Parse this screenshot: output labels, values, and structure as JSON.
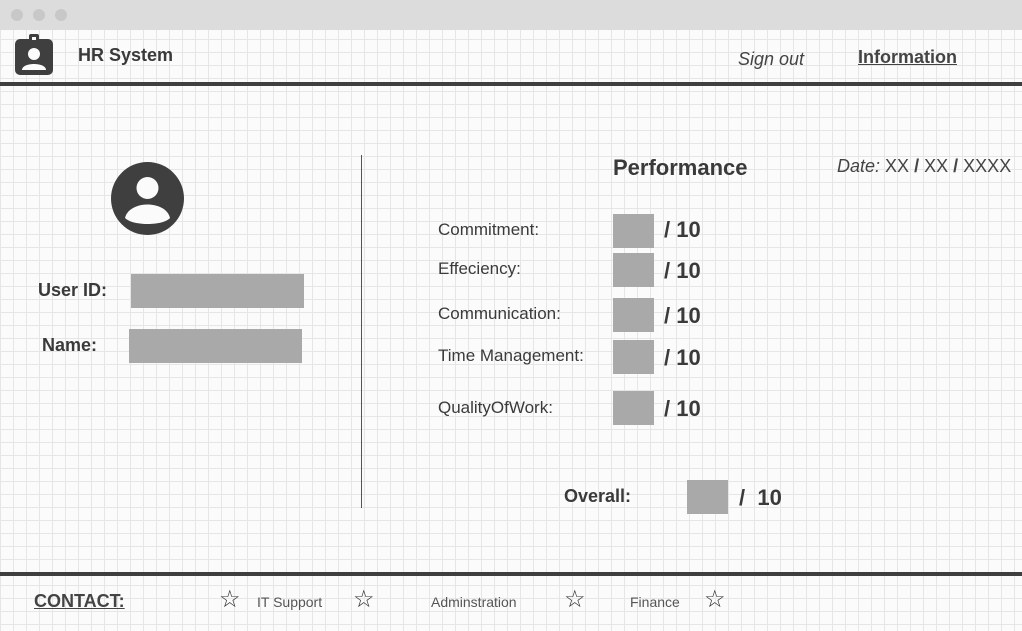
{
  "header": {
    "app_title": "HR System",
    "sign_out_label": "Sign out",
    "information_label": "Information"
  },
  "user": {
    "user_id_label": "User ID:",
    "user_id_value": "",
    "name_label": "Name:",
    "name_value": ""
  },
  "performance": {
    "title": "Performance",
    "date_label": "Date:",
    "date_day": "XX",
    "date_month": "XX",
    "date_year": "XXXX",
    "date_separator": "/",
    "criteria": [
      {
        "label": "Commitment:",
        "score": "",
        "max": "/ 10"
      },
      {
        "label": "Effeciency:",
        "score": "",
        "max": "/ 10"
      },
      {
        "label": "Communication:",
        "score": "",
        "max": "/ 10"
      },
      {
        "label": "Time Management:",
        "score": "",
        "max": "/ 10"
      },
      {
        "label": "QualityOfWork:",
        "score": "",
        "max": "/ 10"
      }
    ],
    "overall": {
      "label": "Overall:",
      "score": "",
      "max": "/  10"
    }
  },
  "footer": {
    "contact_label": "CONTACT:",
    "links": [
      "IT Support",
      "Adminstration",
      "Finance"
    ]
  },
  "icons": {
    "logo": "id-badge-icon",
    "avatar": "user-avatar-icon",
    "star": "star-outline-icon"
  },
  "colors": {
    "placeholder_box": "#a9a9a9",
    "rule": "#3f3f3f"
  }
}
